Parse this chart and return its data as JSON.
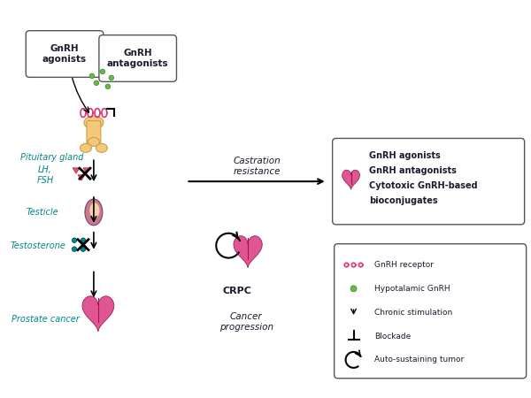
{
  "bg_color": "#ffffff",
  "box_color": "#333333",
  "text_color_dark": "#1a1a2e",
  "text_color_teal": "#006666",
  "text_color_red": "#cc0044",
  "arrow_color": "#333333",
  "green_color": "#66bb44",
  "pink_color": "#dd3377",
  "teal_color": "#008888",
  "peach_color": "#f5c97a",
  "labels": {
    "gnrh_agonists": "GnRH\nagonists",
    "gnrh_antagonists": "GnRH\nantagonists",
    "pituitary_gland": "Pituitary gland",
    "lh_fsh": "LH,\nFSH",
    "testicle": "Testicle",
    "testosterone": "Testosterone",
    "prostate_cancer": "Prostate cancer",
    "castration_resistance": "Castration\nresistance",
    "crpc": "CRPC",
    "cancer_progression": "Cancer\nprogression",
    "treatment_box_line1": "GnRH agonists",
    "treatment_box_line2": "GnRH antagonists",
    "treatment_box_line3": "Cytotoxic GnRH-based",
    "treatment_box_line4": "bioconjugates",
    "legend_receptor": "GnRH receptor",
    "legend_hypo": "Hypotalamic GnRH",
    "legend_chronic": "Chronic stimulation",
    "legend_blockade": "Blockade",
    "legend_auto": "Auto-sustaining tumor"
  }
}
